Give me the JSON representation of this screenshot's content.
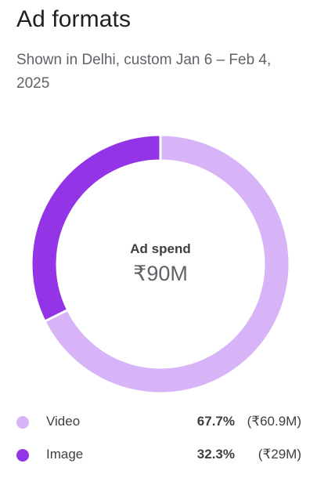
{
  "card": {
    "title": "Ad formats",
    "subtitle": "Shown in Delhi, custom Jan 6 – Feb 4, 2025"
  },
  "center": {
    "label": "Ad spend",
    "value": "₹90M"
  },
  "colors": {
    "video": "#d7b3f7",
    "image": "#9334e6",
    "separator": "#ffffff"
  },
  "legend": [
    {
      "name": "Video",
      "percent": "67.7%",
      "amount": "(₹60.9M)"
    },
    {
      "name": "Image",
      "percent": "32.3%",
      "amount": "(₹29M)"
    }
  ],
  "chart_data": {
    "type": "pie",
    "donut": true,
    "title": "Ad formats",
    "center_label": "Ad spend",
    "center_value": "₹90M",
    "categories": [
      "Video",
      "Image"
    ],
    "values": [
      67.7,
      32.3
    ],
    "amounts": [
      "₹60.9M",
      "₹29M"
    ],
    "colors": [
      "#d7b3f7",
      "#9334e6"
    ],
    "legend_placement": "bottom"
  }
}
